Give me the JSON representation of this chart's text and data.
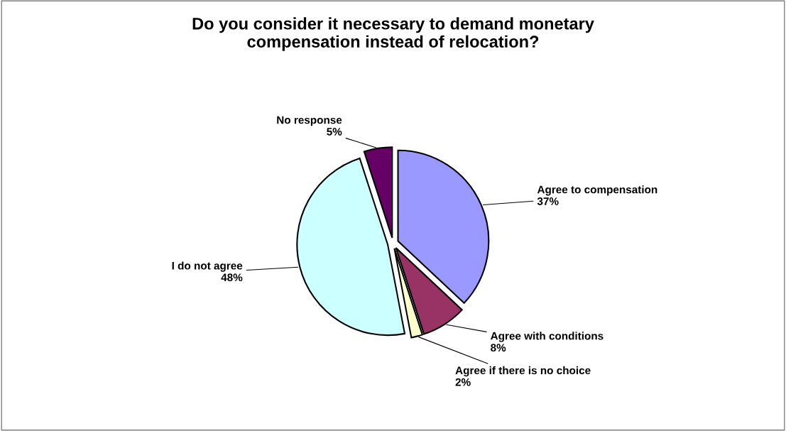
{
  "chart_data": {
    "type": "pie",
    "title": "Do you consider it necessary to demand monetary\ncompensation instead of relocation?",
    "categories": [
      "Agree to compensation",
      "Agree with conditions",
      "Agree if there is no choice",
      "I do not agree",
      "No response"
    ],
    "values": [
      37,
      8,
      2,
      48,
      5
    ],
    "value_labels": [
      "37%",
      "8%",
      "2%",
      "48%",
      "5%"
    ],
    "colors": [
      "#9999ff",
      "#993366",
      "#ffffcc",
      "#ccffff",
      "#660066"
    ],
    "legend": false
  }
}
